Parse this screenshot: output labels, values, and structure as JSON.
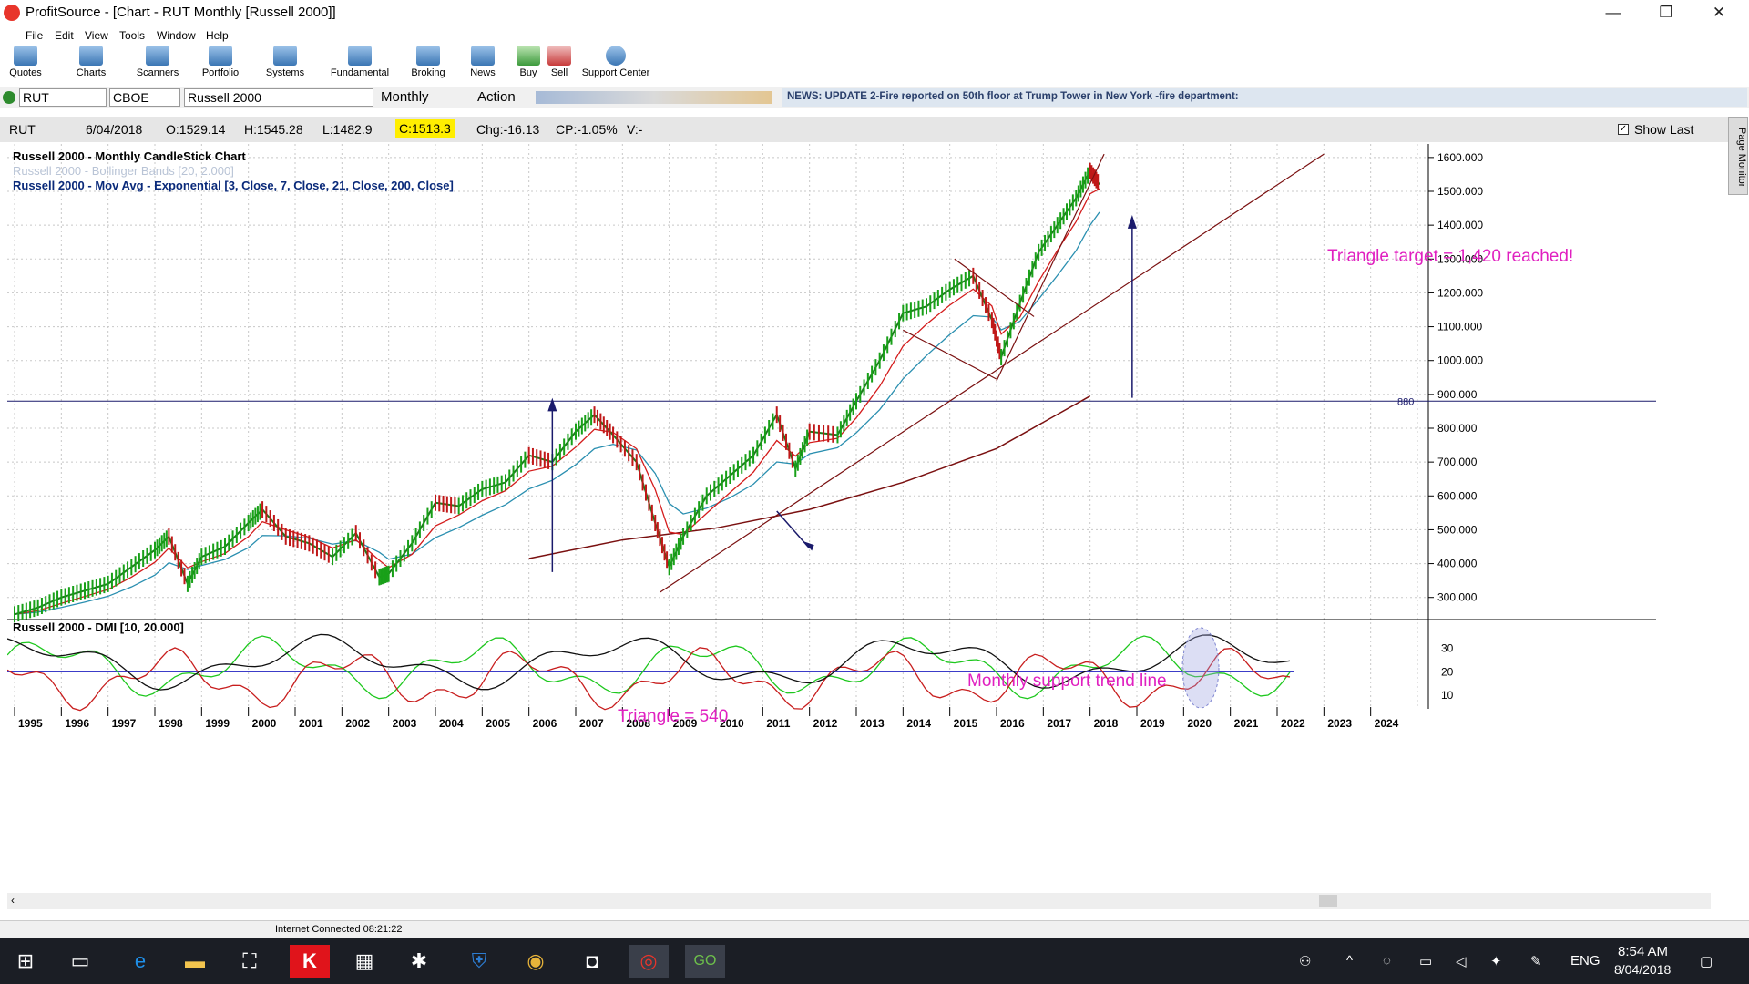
{
  "window": {
    "title": "ProfitSource - [Chart - RUT Monthly [Russell 2000]]",
    "controls": {
      "minimize": "—",
      "restore": "❐",
      "close": "✕"
    }
  },
  "menu": [
    "File",
    "Edit",
    "View",
    "Tools",
    "Window",
    "Help"
  ],
  "toolbar": [
    "Quotes",
    "Charts",
    "Scanners",
    "Portfolio",
    "Systems",
    "Fundamental",
    "Broking",
    "News",
    "Buy",
    "Sell",
    "Support Center"
  ],
  "symbolbar": {
    "symbol": "RUT",
    "exchange": "CBOE",
    "name": "Russell 2000",
    "period": "Monthly",
    "action": "Action",
    "news": "NEWS: UPDATE 2-Fire reported on 50th floor at Trump Tower in New York -fire department:"
  },
  "quote": {
    "symbol": "RUT",
    "date": "6/04/2018",
    "open": "O:1529.14",
    "high": "H:1545.28",
    "low": "L:1482.9",
    "close": "C:1513.3",
    "change": "Chg:-16.13",
    "cp": "CP:-1.05%",
    "volume": "V:-",
    "show_last": "Show Last"
  },
  "page_monitor": "Page Monitor",
  "chart_data": {
    "type": "candlestick",
    "legend": [
      "Russell 2000 - Monthly CandleStick Chart",
      "Russell 2000 - Bollinger Bands [20, 2.000]",
      "Russell 2000 - Mov Avg - Exponential [3, Close, 7, Close, 21, Close, 200, Close]"
    ],
    "y_ticks": [
      "1600.000",
      "1500.000",
      "1400.000",
      "1300.000",
      "1200.000",
      "1100.000",
      "1000.000",
      "900.000",
      "800.000",
      "700.000",
      "600.000",
      "500.000",
      "400.000",
      "300.000"
    ],
    "ylim": [
      240,
      1640
    ],
    "hline": {
      "value": 880,
      "label": "880"
    },
    "x_ticks": [
      "1995",
      "1996",
      "1997",
      "1998",
      "1999",
      "2000",
      "2001",
      "2002",
      "2003",
      "2004",
      "2005",
      "2006",
      "2007",
      "2008",
      "2009",
      "2010",
      "2011",
      "2012",
      "2013",
      "2014",
      "2015",
      "2016",
      "2017",
      "2018",
      "2019",
      "2020",
      "2021",
      "2022",
      "2023",
      "2024"
    ],
    "xlim": [
      1995,
      2025
    ],
    "close_series": [
      {
        "x": 1995.0,
        "y": 250
      },
      {
        "x": 1995.5,
        "y": 270
      },
      {
        "x": 1996.0,
        "y": 300
      },
      {
        "x": 1996.5,
        "y": 320
      },
      {
        "x": 1997.0,
        "y": 340
      },
      {
        "x": 1997.5,
        "y": 390
      },
      {
        "x": 1998.0,
        "y": 440
      },
      {
        "x": 1998.3,
        "y": 480
      },
      {
        "x": 1998.7,
        "y": 340
      },
      {
        "x": 1999.0,
        "y": 420
      },
      {
        "x": 1999.5,
        "y": 450
      },
      {
        "x": 2000.0,
        "y": 520
      },
      {
        "x": 2000.3,
        "y": 560
      },
      {
        "x": 2000.8,
        "y": 480
      },
      {
        "x": 2001.3,
        "y": 460
      },
      {
        "x": 2001.8,
        "y": 420
      },
      {
        "x": 2002.3,
        "y": 490
      },
      {
        "x": 2002.8,
        "y": 360
      },
      {
        "x": 2003.0,
        "y": 370
      },
      {
        "x": 2003.5,
        "y": 460
      },
      {
        "x": 2004.0,
        "y": 580
      },
      {
        "x": 2004.5,
        "y": 570
      },
      {
        "x": 2005.0,
        "y": 620
      },
      {
        "x": 2005.5,
        "y": 640
      },
      {
        "x": 2006.0,
        "y": 720
      },
      {
        "x": 2006.5,
        "y": 700
      },
      {
        "x": 2007.0,
        "y": 790
      },
      {
        "x": 2007.4,
        "y": 840
      },
      {
        "x": 2007.8,
        "y": 780
      },
      {
        "x": 2008.3,
        "y": 700
      },
      {
        "x": 2008.7,
        "y": 520
      },
      {
        "x": 2009.0,
        "y": 390
      },
      {
        "x": 2009.3,
        "y": 480
      },
      {
        "x": 2009.8,
        "y": 600
      },
      {
        "x": 2010.3,
        "y": 660
      },
      {
        "x": 2010.8,
        "y": 720
      },
      {
        "x": 2011.3,
        "y": 840
      },
      {
        "x": 2011.7,
        "y": 680
      },
      {
        "x": 2012.0,
        "y": 790
      },
      {
        "x": 2012.6,
        "y": 780
      },
      {
        "x": 2013.0,
        "y": 880
      },
      {
        "x": 2013.5,
        "y": 1000
      },
      {
        "x": 2014.0,
        "y": 1140
      },
      {
        "x": 2014.5,
        "y": 1160
      },
      {
        "x": 2015.0,
        "y": 1210
      },
      {
        "x": 2015.5,
        "y": 1250
      },
      {
        "x": 2015.9,
        "y": 1120
      },
      {
        "x": 2016.1,
        "y": 1010
      },
      {
        "x": 2016.5,
        "y": 1170
      },
      {
        "x": 2016.9,
        "y": 1320
      },
      {
        "x": 2017.3,
        "y": 1400
      },
      {
        "x": 2017.7,
        "y": 1480
      },
      {
        "x": 2018.0,
        "y": 1560
      },
      {
        "x": 2018.2,
        "y": 1520
      }
    ],
    "dmi_panel": {
      "label": "Russell 2000 - DMI [10, 20.000]",
      "y_ticks": [
        "30",
        "20",
        "10"
      ],
      "threshold": 20
    }
  },
  "annotations": {
    "triangle_left": "Triangle  = 540",
    "support_line": "Monthly support trend line",
    "triangle_target": "Triangle target = 1,420 reached!"
  },
  "status": {
    "connection": "Internet Connected 08:21:22"
  },
  "taskbar": {
    "lang": "ENG",
    "time": "8:54 AM",
    "date": "8/04/2018"
  }
}
